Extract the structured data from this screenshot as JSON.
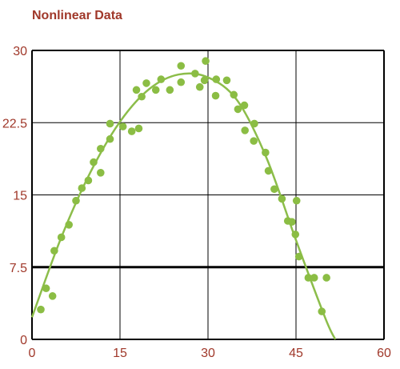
{
  "chart_data": {
    "type": "scatter",
    "title": "Nonlinear Data",
    "xlabel": "",
    "ylabel": "",
    "xlim": [
      0,
      60
    ],
    "ylim": [
      0,
      30
    ],
    "x_ticks": [
      "0",
      "15",
      "30",
      "45",
      "60"
    ],
    "y_ticks": [
      "0",
      "7.5",
      "15",
      "22.5",
      "30"
    ],
    "grid": true,
    "series": [
      {
        "kind": "points",
        "points": [
          [
            1.5,
            3.1
          ],
          [
            2.4,
            5.3
          ],
          [
            3.5,
            4.5
          ],
          [
            3.8,
            9.2
          ],
          [
            5.0,
            10.6
          ],
          [
            6.3,
            11.9
          ],
          [
            7.5,
            14.4
          ],
          [
            8.5,
            15.7
          ],
          [
            9.6,
            16.5
          ],
          [
            10.5,
            18.4
          ],
          [
            11.7,
            17.3
          ],
          [
            11.7,
            19.8
          ],
          [
            13.3,
            22.4
          ],
          [
            13.3,
            20.8
          ],
          [
            15.5,
            22.1
          ],
          [
            17.0,
            21.6
          ],
          [
            17.8,
            25.9
          ],
          [
            18.2,
            21.9
          ],
          [
            18.7,
            25.2
          ],
          [
            19.5,
            26.6
          ],
          [
            21.1,
            25.9
          ],
          [
            22.0,
            27.0
          ],
          [
            23.5,
            25.9
          ],
          [
            25.4,
            28.4
          ],
          [
            25.4,
            26.7
          ],
          [
            27.8,
            27.6
          ],
          [
            28.6,
            26.2
          ],
          [
            29.6,
            28.9
          ],
          [
            29.4,
            26.9
          ],
          [
            31.4,
            27.0
          ],
          [
            31.3,
            25.3
          ],
          [
            33.2,
            26.9
          ],
          [
            34.4,
            25.4
          ],
          [
            35.1,
            23.9
          ],
          [
            36.2,
            24.3
          ],
          [
            36.3,
            21.7
          ],
          [
            37.8,
            20.6
          ],
          [
            37.9,
            22.4
          ],
          [
            39.8,
            19.4
          ],
          [
            40.3,
            17.5
          ],
          [
            41.3,
            15.6
          ],
          [
            42.6,
            14.6
          ],
          [
            43.6,
            12.3
          ],
          [
            44.3,
            12.2
          ],
          [
            44.9,
            10.9
          ],
          [
            45.1,
            14.4
          ],
          [
            45.5,
            8.6
          ],
          [
            47.1,
            6.4
          ],
          [
            48.1,
            6.4
          ],
          [
            49.4,
            2.9
          ],
          [
            50.2,
            6.4
          ]
        ]
      },
      {
        "kind": "curve",
        "points": [
          [
            0,
            2.3
          ],
          [
            5,
            10.6
          ],
          [
            10,
            17.4
          ],
          [
            15,
            22.6
          ],
          [
            20,
            26.0
          ],
          [
            25,
            27.5
          ],
          [
            30,
            27.2
          ],
          [
            35,
            24.8
          ],
          [
            40,
            18.8
          ],
          [
            45,
            10.3
          ],
          [
            50,
            2.2
          ],
          [
            51.7,
            0.0
          ]
        ]
      }
    ],
    "colors": {
      "title": "#a0382a",
      "ticks": "#a0382a",
      "points": "#8bbd44",
      "curve": "#8cbd4a",
      "grid": "#000000",
      "background": "#ffffff"
    }
  }
}
